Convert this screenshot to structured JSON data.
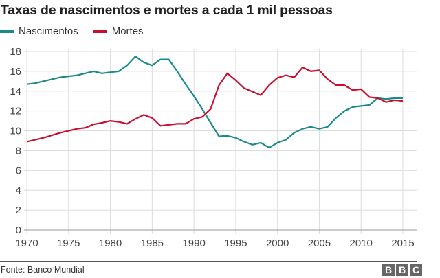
{
  "header": {
    "title": "Taxas de nascimentos e mortes a cada 1 mil pessoas"
  },
  "legend": [
    {
      "label": "Nascimentos",
      "color": "#1a8a8a"
    },
    {
      "label": "Mortes",
      "color": "#c8102e"
    }
  ],
  "footer": {
    "source": "Fonte: Banco Mundial",
    "logo_letters": [
      "B",
      "B",
      "C"
    ]
  },
  "chart_data": {
    "type": "line",
    "title": "Taxas de nascimentos e mortes a cada 1 mil pessoas",
    "xlabel": "",
    "ylabel": "",
    "xlim": [
      1970,
      2015
    ],
    "ylim": [
      0,
      18
    ],
    "x_ticks": [
      1970,
      1975,
      1980,
      1985,
      1990,
      1995,
      2000,
      2005,
      2010,
      2015
    ],
    "y_ticks": [
      0,
      2,
      4,
      6,
      8,
      10,
      12,
      14,
      16,
      18
    ],
    "grid": true,
    "legend_position": "top-left",
    "x": [
      1970,
      1971,
      1972,
      1973,
      1974,
      1975,
      1976,
      1977,
      1978,
      1979,
      1980,
      1981,
      1982,
      1983,
      1984,
      1985,
      1986,
      1987,
      1988,
      1989,
      1990,
      1991,
      1992,
      1993,
      1994,
      1995,
      1996,
      1997,
      1998,
      1999,
      2000,
      2001,
      2002,
      2003,
      2004,
      2005,
      2006,
      2007,
      2008,
      2009,
      2010,
      2011,
      2012,
      2013,
      2014,
      2015
    ],
    "series": [
      {
        "name": "Nascimentos",
        "color": "#1a8a8a",
        "values": [
          14.7,
          14.8,
          15.0,
          15.2,
          15.4,
          15.5,
          15.6,
          15.8,
          16.0,
          15.8,
          15.9,
          16.0,
          16.6,
          17.5,
          16.9,
          16.6,
          17.2,
          17.2,
          16.0,
          14.7,
          13.5,
          12.2,
          10.8,
          9.45,
          9.5,
          9.3,
          8.9,
          8.6,
          8.8,
          8.3,
          8.8,
          9.1,
          9.8,
          10.2,
          10.4,
          10.2,
          10.4,
          11.3,
          12.0,
          12.4,
          12.5,
          12.6,
          13.3,
          13.2,
          13.3,
          13.3
        ]
      },
      {
        "name": "Mortes",
        "color": "#c8102e",
        "values": [
          8.9,
          9.1,
          9.3,
          9.55,
          9.8,
          10.0,
          10.2,
          10.3,
          10.65,
          10.8,
          11.0,
          10.9,
          10.7,
          11.2,
          11.6,
          11.3,
          10.5,
          10.6,
          10.7,
          10.7,
          11.2,
          11.4,
          12.2,
          14.6,
          15.8,
          15.1,
          14.3,
          13.95,
          13.6,
          14.6,
          15.35,
          15.6,
          15.4,
          16.4,
          16.0,
          16.1,
          15.2,
          14.6,
          14.6,
          14.1,
          14.2,
          13.4,
          13.3,
          12.9,
          13.1,
          13.0
        ]
      }
    ]
  }
}
